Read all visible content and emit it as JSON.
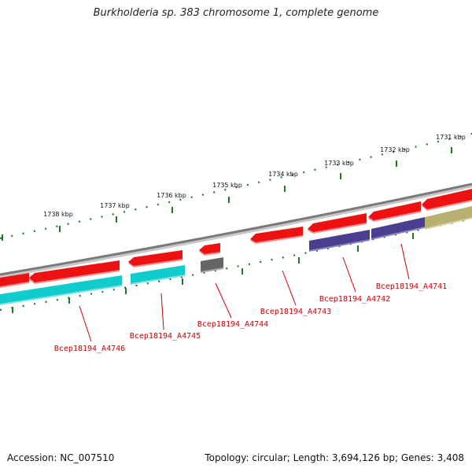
{
  "title": "Burkholderia sp. 383 chromosome 1, complete genome",
  "footer": {
    "accession": "Accession: NC_007510",
    "topology": "Topology: circular; Length: 3,694,126 bp; Genes: 3,408"
  },
  "colors": {
    "backbone": "#8a8a8a",
    "tick": "#1f7a1f",
    "forward_gene": "#ee1111",
    "reverse_cyan": "#11cccc",
    "reverse_purple": "#4a3f8f",
    "reverse_olive": "#b8b070",
    "reverse_grey": "#666666",
    "gene_label": "#cc0000"
  },
  "scale_labels": [
    "1738 kbp",
    "1737 kbp",
    "1736 kbp",
    "1735 kbp",
    "1734 kbp",
    "1733 kbp",
    "1732 kbp",
    "1731 kbp"
  ],
  "gene_labels": [
    "Bcep18194_A4746",
    "Bcep18194_A4745",
    "Bcep18194_A4744",
    "Bcep18194_A4743",
    "Bcep18194_A4742",
    "Bcep18194_A4741"
  ]
}
